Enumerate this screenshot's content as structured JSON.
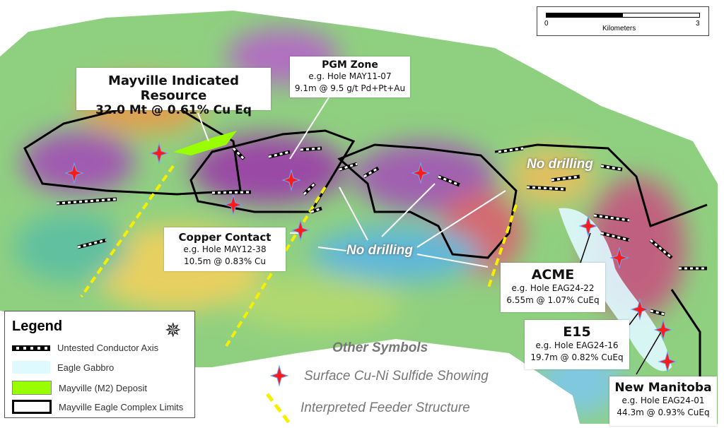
{
  "scale_bar": {
    "min": "0",
    "max": "3",
    "unit": "Kilometers"
  },
  "callouts": {
    "mayville": {
      "title": "Mayville Indicated Resource",
      "detail": "32.0 Mt @ 0.61% Cu Eq"
    },
    "pgm": {
      "title": "PGM Zone",
      "hole": "e.g. Hole MAY11-07",
      "result": "9.1m @ 9.5 g/t Pd+Pt+Au"
    },
    "copper": {
      "title": "Copper Contact",
      "hole": "e.g. Hole MAY12-38",
      "result": "10.5m @ 0.83% Cu"
    },
    "acme": {
      "title": "ACME",
      "hole": "e.g. Hole EAG24-22",
      "result": "6.55m @ 1.07% CuEq"
    },
    "e15": {
      "title": "E15",
      "hole": "e.g. Hole EAG24-16",
      "result": "19.7m @ 0.82% CuEq"
    },
    "newmanitoba": {
      "title": "New Manitoba",
      "hole": "e.g. Hole EAG24-01",
      "result": "44.3m @ 0.93% CuEq"
    }
  },
  "annotations": {
    "no_drilling_1": "No drilling",
    "no_drilling_2": "No drilling"
  },
  "legend": {
    "title": "Legend",
    "items": [
      {
        "label": "Untested Conductor Axis"
      },
      {
        "label": "Eagle Gabbro",
        "color": "#dffaff"
      },
      {
        "label": "Mayville (M2) Deposit",
        "color": "#99ff00"
      },
      {
        "label": "Mayville Eagle Complex Limits"
      }
    ]
  },
  "other_symbols": {
    "title": "Other Symbols",
    "items": [
      {
        "label": "Surface Cu-Ni Sulfide Showing",
        "icon": "red-star-icon"
      },
      {
        "label": "Interpreted Feeder Structure",
        "icon": "yellow-dash-icon"
      }
    ]
  },
  "colors": {
    "showing": "#ff1a1a",
    "feeder": "#f5f000",
    "deposit": "#99ff00",
    "gabbro": "#dffaff"
  }
}
